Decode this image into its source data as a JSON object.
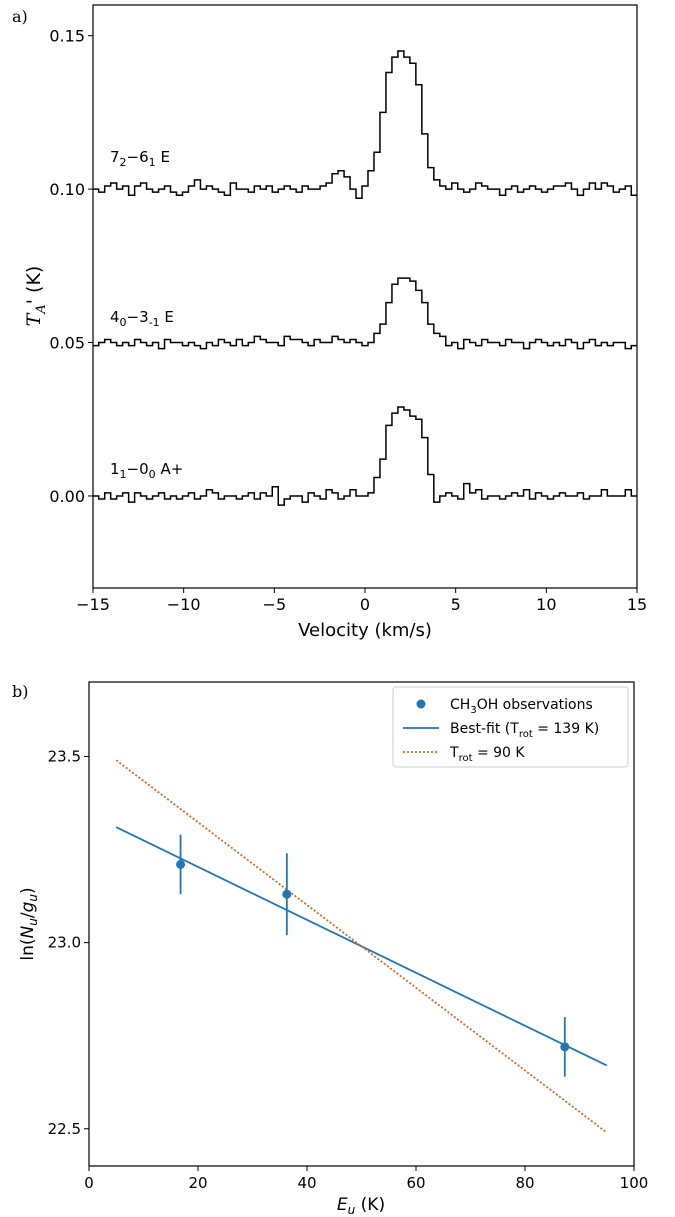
{
  "chart_data": [
    {
      "panel_label": "a)",
      "type": "line",
      "style": "step",
      "xlabel": "Velocity (km/s)",
      "ylabel": "T_A' (K)",
      "ylabel_parts": {
        "main": "T",
        "sub": "A",
        "suffix": "' (K)"
      },
      "xlim": [
        -15,
        15
      ],
      "ylim": [
        -0.03,
        0.16
      ],
      "xticks": [
        -15,
        -10,
        -5,
        0,
        5,
        10,
        15
      ],
      "xtick_labels": [
        "−15",
        "−10",
        "−5",
        "0",
        "5",
        "10",
        "15"
      ],
      "yticks": [
        0.0,
        0.05,
        0.1,
        0.15
      ],
      "ytick_labels": [
        "0.00",
        "0.05",
        "0.10",
        "0.15"
      ],
      "grid": false,
      "bin_width_kms": 0.33,
      "line_color": "#000000",
      "series": [
        {
          "name": "7₂−6₁ E",
          "label_parts": {
            "a": "7",
            "a_sub": "2",
            "b": "−6",
            "b_sub": "1",
            "suffix": " E"
          },
          "offset": 0.1,
          "values": [
            0.1,
            0.099,
            0.101,
            0.102,
            0.1,
            0.101,
            0.098,
            0.101,
            0.102,
            0.1,
            0.099,
            0.1,
            0.101,
            0.099,
            0.098,
            0.099,
            0.101,
            0.103,
            0.1,
            0.101,
            0.1,
            0.099,
            0.098,
            0.102,
            0.1,
            0.1,
            0.099,
            0.101,
            0.1,
            0.101,
            0.099,
            0.1,
            0.101,
            0.1,
            0.099,
            0.101,
            0.1,
            0.1,
            0.101,
            0.102,
            0.105,
            0.106,
            0.104,
            0.1,
            0.097,
            0.101,
            0.106,
            0.112,
            0.125,
            0.138,
            0.143,
            0.145,
            0.143,
            0.141,
            0.134,
            0.118,
            0.107,
            0.103,
            0.101,
            0.1,
            0.102,
            0.1,
            0.099,
            0.1,
            0.102,
            0.101,
            0.1,
            0.1,
            0.098,
            0.1,
            0.101,
            0.099,
            0.1,
            0.101,
            0.1,
            0.099,
            0.1,
            0.101,
            0.101,
            0.102,
            0.1,
            0.098,
            0.1,
            0.102,
            0.1,
            0.102,
            0.101,
            0.099,
            0.1,
            0.101,
            0.098
          ]
        },
        {
          "name": "4₀−3₋₁ E",
          "label_parts": {
            "a": "4",
            "a_sub": "0",
            "b": "−3",
            "b_sub": "-1",
            "suffix": " E"
          },
          "offset": 0.05,
          "values": [
            0.049,
            0.05,
            0.051,
            0.05,
            0.049,
            0.05,
            0.049,
            0.051,
            0.05,
            0.049,
            0.05,
            0.048,
            0.051,
            0.05,
            0.05,
            0.049,
            0.05,
            0.049,
            0.048,
            0.05,
            0.049,
            0.051,
            0.05,
            0.049,
            0.051,
            0.049,
            0.05,
            0.052,
            0.051,
            0.05,
            0.05,
            0.049,
            0.052,
            0.051,
            0.051,
            0.05,
            0.049,
            0.051,
            0.05,
            0.05,
            0.052,
            0.051,
            0.05,
            0.051,
            0.05,
            0.049,
            0.05,
            0.053,
            0.056,
            0.063,
            0.069,
            0.071,
            0.071,
            0.07,
            0.067,
            0.063,
            0.056,
            0.053,
            0.052,
            0.049,
            0.05,
            0.048,
            0.051,
            0.05,
            0.049,
            0.051,
            0.05,
            0.05,
            0.049,
            0.051,
            0.05,
            0.05,
            0.048,
            0.05,
            0.051,
            0.05,
            0.049,
            0.05,
            0.049,
            0.051,
            0.05,
            0.048,
            0.05,
            0.051,
            0.049,
            0.05,
            0.049,
            0.05,
            0.05,
            0.048,
            0.049
          ]
        },
        {
          "name": "1₁−0₀ A+",
          "label_parts": {
            "a": "1",
            "a_sub": "1",
            "b": "−0",
            "b_sub": "0",
            "suffix": " A+"
          },
          "offset": 0.0,
          "values": [
            0.0,
            -0.001,
            0.001,
            -0.001,
            0.0,
            0.001,
            -0.002,
            0.001,
            0.0,
            -0.001,
            0.0,
            0.001,
            -0.001,
            0.0,
            -0.001,
            0.0,
            0.001,
            -0.001,
            0.0,
            0.002,
            0.001,
            -0.001,
            0.0,
            0.0,
            -0.001,
            0.0,
            0.001,
            -0.001,
            0.001,
            0.0,
            0.003,
            -0.003,
            -0.001,
            0.0,
            0.0,
            -0.002,
            0.001,
            0.0,
            -0.001,
            0.002,
            0.001,
            -0.001,
            0.0,
            0.002,
            0.0,
            0.0,
            0.001,
            0.006,
            0.012,
            0.023,
            0.027,
            0.029,
            0.028,
            0.026,
            0.025,
            0.019,
            0.007,
            -0.002,
            0.0,
            0.001,
            0.0,
            -0.001,
            0.004,
            0.001,
            0.002,
            -0.001,
            0.0,
            0.0,
            -0.001,
            0.0,
            0.001,
            0.0,
            0.002,
            -0.001,
            0.001,
            0.0,
            -0.001,
            0.0,
            0.001,
            0.0,
            0.0,
            0.001,
            -0.001,
            0.0,
            0.0,
            0.002,
            0.0,
            0.0,
            0.0,
            0.002,
            0.0
          ]
        }
      ]
    },
    {
      "panel_label": "b)",
      "type": "scatter",
      "xlabel": "E_u (K)",
      "xlabel_parts": {
        "main": "E",
        "sub": "u",
        "suffix": " (K)"
      },
      "ylabel": "ln(N_u/g_u)",
      "ylabel_parts": {
        "prefix": "ln(",
        "n": "N",
        "n_sub": "u",
        "slash": "/",
        "g": "g",
        "g_sub": "u",
        "suffix": ")"
      },
      "xlim": [
        0,
        100
      ],
      "ylim": [
        22.4,
        23.7
      ],
      "xticks": [
        0,
        20,
        40,
        60,
        80,
        100
      ],
      "xtick_labels": [
        "0",
        "20",
        "40",
        "60",
        "80",
        "100"
      ],
      "yticks": [
        22.5,
        23.0,
        23.5
      ],
      "ytick_labels": [
        "22.5",
        "23.0",
        "23.5"
      ],
      "grid": false,
      "legend_position": "top-right",
      "points": {
        "name": "CH₃OH observations",
        "label_parts": {
          "a": "CH",
          "sub": "3",
          "b": "OH observations"
        },
        "color": "#1f77b4",
        "x": [
          16.8,
          36.3,
          87.3
        ],
        "y": [
          23.21,
          23.13,
          22.72
        ],
        "yerr": [
          0.08,
          0.11,
          0.08
        ]
      },
      "lines": [
        {
          "name": "Best-fit (T_rot = 139 K)",
          "label_parts": {
            "a": "Best-fit (T",
            "sub": "rot",
            "b": " = 139 K)"
          },
          "color": "#1f77b4",
          "dash": "solid",
          "x": [
            5,
            95
          ],
          "y": [
            23.31,
            22.67
          ]
        },
        {
          "name": "T_rot = 90 K",
          "label_parts": {
            "a": "T",
            "sub": "rot",
            "b": " = 90 K"
          },
          "color": "#d2691e",
          "dash": "dotted",
          "x": [
            5,
            95
          ],
          "y": [
            23.49,
            22.49
          ]
        }
      ]
    }
  ]
}
